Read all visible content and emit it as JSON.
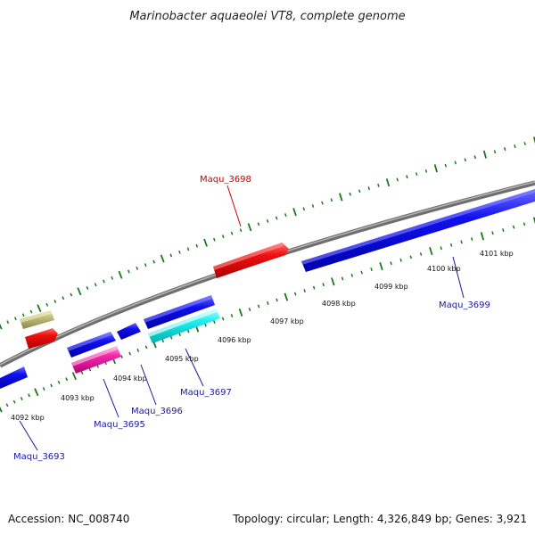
{
  "title": "Marinobacter aquaeolei VT8, complete genome",
  "footer": {
    "accession": "Accession: NC_008740",
    "summary": "Topology: circular; Length: 4,326,849 bp; Genes: 3,921"
  },
  "colors": {
    "backbone": "#888888",
    "tick_major": "#1a7a1a",
    "tick_minor": "#1a7a1a",
    "label_blue": "#1a1aa0",
    "label_red": "#cc0000"
  },
  "tick_labels": [
    "4092 kbp",
    "4093 kbp",
    "4094 kbp",
    "4095 kbp",
    "4096 kbp",
    "4097 kbp",
    "4098 kbp",
    "4099 kbp",
    "4100 kbp",
    "4101 kbp"
  ],
  "gene_labels": [
    {
      "name": "Maqu_3698",
      "color": "#cc0000"
    },
    {
      "name": "Maqu_3699",
      "color": "#1a1aa0"
    },
    {
      "name": "Maqu_3697",
      "color": "#1a1aa0"
    },
    {
      "name": "Maqu_3696",
      "color": "#1a1aa0"
    },
    {
      "name": "Maqu_3695",
      "color": "#1a1aa0"
    },
    {
      "name": "Maqu_3693",
      "color": "#1a1aa0"
    }
  ]
}
